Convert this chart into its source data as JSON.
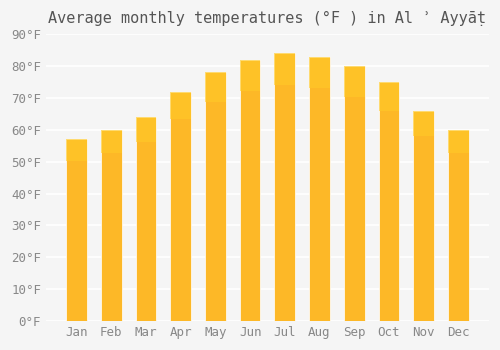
{
  "title": "Average monthly temperatures (°F ) in Al ʾ Ayyāṭ",
  "months": [
    "Jan",
    "Feb",
    "Mar",
    "Apr",
    "May",
    "Jun",
    "Jul",
    "Aug",
    "Sep",
    "Oct",
    "Nov",
    "Dec"
  ],
  "values": [
    57,
    60,
    64,
    72,
    78,
    82,
    84,
    83,
    80,
    75,
    66,
    60
  ],
  "bar_color_main": "#FDB827",
  "bar_color_edge": "#FDB827",
  "bar_gradient_top": "#FFCA28",
  "ylim": [
    0,
    90
  ],
  "yticks": [
    0,
    10,
    20,
    30,
    40,
    50,
    60,
    70,
    80,
    90
  ],
  "background_color": "#f5f5f5",
  "grid_color": "#ffffff",
  "title_fontsize": 11,
  "tick_fontsize": 9
}
